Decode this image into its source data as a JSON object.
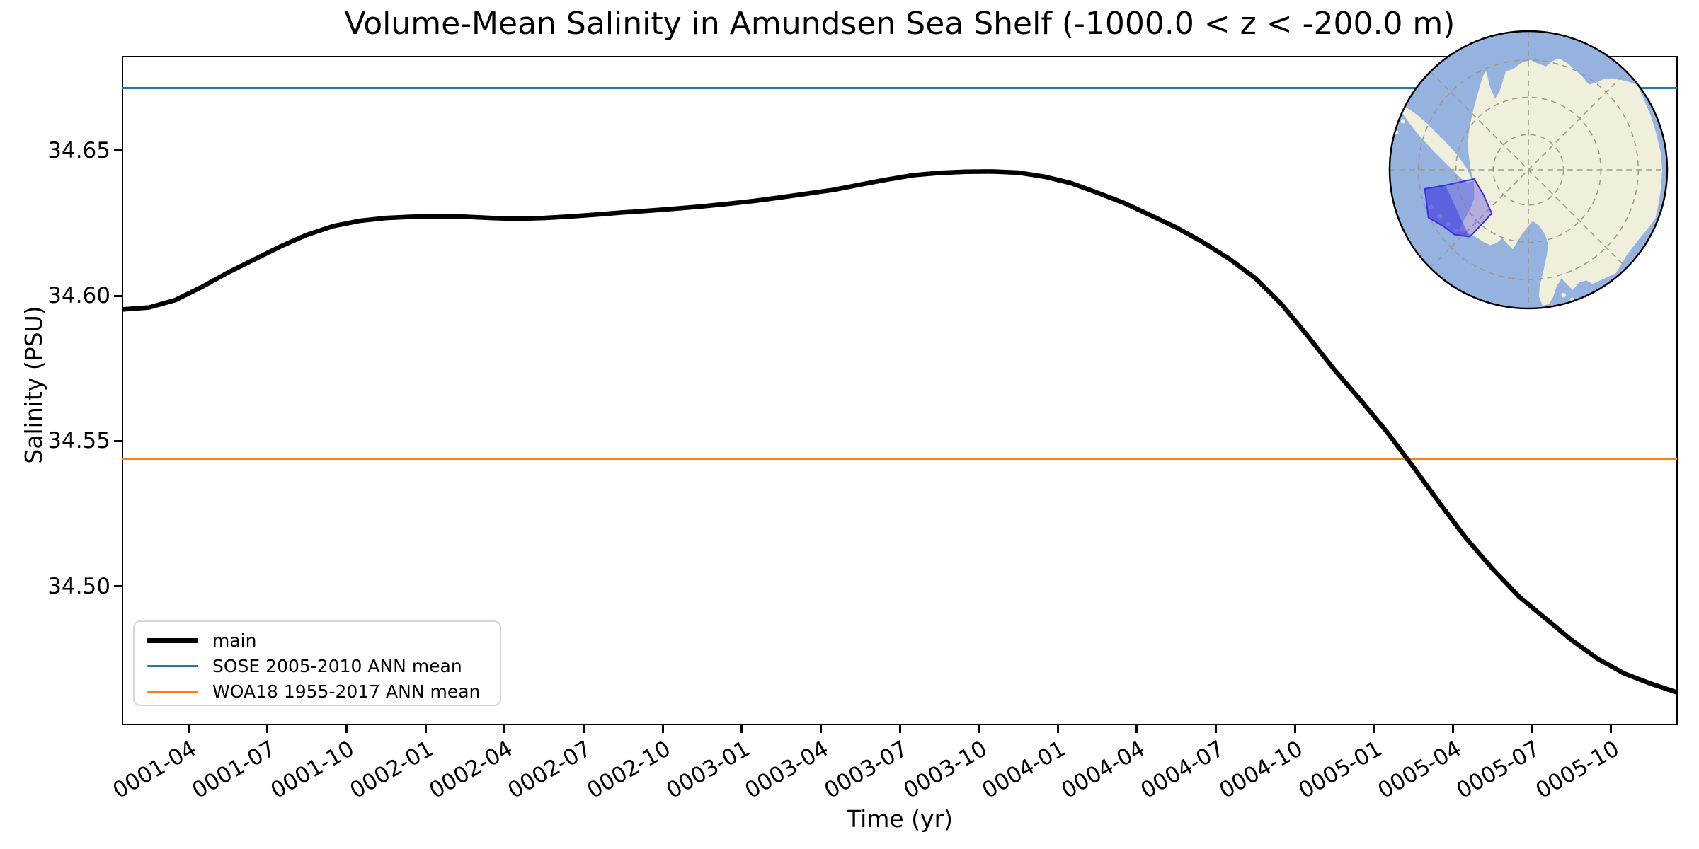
{
  "title": "Volume-Mean Salinity in Amundsen Sea Shelf (-1000.0 < z < -200.0 m)",
  "x_axis": {
    "label": "Time (yr)",
    "tick_labels": [
      "0001-04",
      "0001-07",
      "0001-10",
      "0002-01",
      "0002-04",
      "0002-07",
      "0002-10",
      "0003-01",
      "0003-04",
      "0003-07",
      "0003-10",
      "0004-01",
      "0004-04",
      "0004-07",
      "0004-10",
      "0005-01",
      "0005-04",
      "0005-07",
      "0005-10"
    ]
  },
  "y_axis": {
    "label": "Salinity (PSU)",
    "tick_labels": [
      "34.65",
      "34.60",
      "34.55",
      "34.50"
    ],
    "tick_values": [
      34.65,
      34.6,
      34.55,
      34.5
    ]
  },
  "legend": {
    "entries": [
      {
        "label": "main",
        "color": "#000000",
        "line_width": 7
      },
      {
        "label": "SOSE 2005-2010 ANN mean",
        "color": "#1f77b4",
        "line_width": 3
      },
      {
        "label": "WOA18 1955-2017 ANN mean",
        "color": "#ff7f0e",
        "line_width": 3
      }
    ]
  },
  "colors": {
    "main_line": "#000000",
    "sose_line": "#1f77b4",
    "woa_line": "#ff7f0e",
    "inset_ocean": "#96b3e0",
    "inset_land": "#f0efdb",
    "inset_highlight_fill": "#6a5fe0",
    "inset_highlight_dark": "#3535e0",
    "inset_highlight_outline": "#3a2ff0",
    "inset_graticule": "#9a9a92"
  },
  "inset_map": {
    "name": "South polar stereographic map of Antarctica",
    "highlighted_region": "Amundsen Sea Shelf region"
  },
  "chart_data": {
    "type": "line",
    "title": "Volume-Mean Salinity in Amundsen Sea Shelf (-1000.0 < z < -200.0 m)",
    "xlabel": "Time (yr)",
    "ylabel": "Salinity (PSU)",
    "x": [
      "0001-01",
      "0001-02",
      "0001-03",
      "0001-04",
      "0001-05",
      "0001-06",
      "0001-07",
      "0001-08",
      "0001-09",
      "0001-10",
      "0001-11",
      "0001-12",
      "0002-01",
      "0002-02",
      "0002-03",
      "0002-04",
      "0002-05",
      "0002-06",
      "0002-07",
      "0002-08",
      "0002-09",
      "0002-10",
      "0002-11",
      "0002-12",
      "0003-01",
      "0003-02",
      "0003-03",
      "0003-04",
      "0003-05",
      "0003-06",
      "0003-07",
      "0003-08",
      "0003-09",
      "0003-10",
      "0003-11",
      "0003-12",
      "0004-01",
      "0004-02",
      "0004-03",
      "0004-04",
      "0004-05",
      "0004-06",
      "0004-07",
      "0004-08",
      "0004-09",
      "0004-10",
      "0004-11",
      "0004-12",
      "0005-01",
      "0005-02",
      "0005-03",
      "0005-04",
      "0005-05",
      "0005-06",
      "0005-07",
      "0005-08",
      "0005-09",
      "0005-10",
      "0005-11",
      "0005-12"
    ],
    "series": [
      {
        "name": "main",
        "type": "line",
        "color": "#000000",
        "values": [
          34.5953,
          34.596,
          34.5985,
          34.603,
          34.608,
          34.6125,
          34.617,
          34.621,
          34.624,
          34.6258,
          34.6268,
          34.6272,
          34.6273,
          34.6272,
          34.6268,
          34.6265,
          34.6268,
          34.6273,
          34.628,
          34.6287,
          34.6293,
          34.63,
          34.6308,
          34.6317,
          34.6327,
          34.6339,
          34.6352,
          34.6365,
          34.6383,
          34.64,
          34.6415,
          34.6423,
          34.6427,
          34.6428,
          34.6424,
          34.641,
          34.6388,
          34.6355,
          34.632,
          34.6278,
          34.6235,
          34.6185,
          34.6128,
          34.606,
          34.597,
          34.586,
          34.5745,
          34.564,
          34.553,
          34.541,
          34.5285,
          34.5165,
          34.506,
          34.4965,
          34.489,
          34.4815,
          34.475,
          34.47,
          34.4665,
          34.4635
        ]
      },
      {
        "name": "SOSE 2005-2010 ANN mean",
        "type": "hline",
        "color": "#1f77b4",
        "value": 34.6715
      },
      {
        "name": "WOA18 1955-2017 ANN mean",
        "type": "hline",
        "color": "#ff7f0e",
        "value": 34.5439
      }
    ],
    "ylim": [
      34.4527,
      34.6821
    ],
    "xlim": [
      "0001-01",
      "0005-12"
    ],
    "grid": false,
    "legend_position": "lower left"
  }
}
